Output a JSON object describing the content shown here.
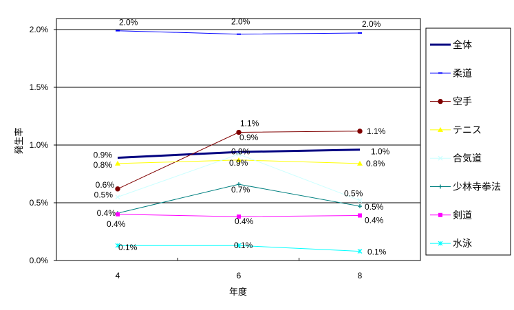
{
  "chart_data": {
    "type": "line",
    "title": "",
    "xlabel": "年度",
    "ylabel": "発生率",
    "x": [
      "4",
      "6",
      "8"
    ],
    "ylim": [
      0,
      2.0
    ],
    "yticks": [
      "0.0%",
      "0.5%",
      "1.0%",
      "1.5%",
      "2.0%"
    ],
    "grid": true,
    "legend": "right",
    "series": [
      {
        "name": "全体",
        "color": "#000080",
        "marker": "none",
        "values": [
          0.89,
          0.94,
          0.96
        ],
        "labels": [
          "0.9%",
          "0.9%",
          "1.0%"
        ]
      },
      {
        "name": "柔道",
        "color": "#0000ff",
        "marker": "dash",
        "values": [
          1.99,
          1.96,
          1.97
        ],
        "labels": [
          "2.0%",
          "2.0%",
          "2.0%"
        ]
      },
      {
        "name": "空手",
        "color": "#800000",
        "marker": "circle",
        "values": [
          0.62,
          1.11,
          1.12
        ],
        "labels": [
          "0.6%",
          "1.1%",
          "1.1%"
        ]
      },
      {
        "name": "テニス",
        "color": "#ffff00",
        "marker": "triangle",
        "values": [
          0.84,
          0.87,
          0.84
        ],
        "labels": [
          "0.8%",
          "0.9%",
          "0.8%"
        ]
      },
      {
        "name": "合気道",
        "color": "#ccffff",
        "marker": "x",
        "values": [
          0.55,
          0.92,
          0.52
        ],
        "labels": [
          "0.5%",
          "0.9%",
          "0.5%"
        ]
      },
      {
        "name": "少林寺拳法",
        "color": "#008080",
        "marker": "plus",
        "values": [
          0.41,
          0.66,
          0.47
        ],
        "labels": [
          "0.4%",
          "0.7%",
          "0.5%"
        ]
      },
      {
        "name": "剣道",
        "color": "#ff00ff",
        "marker": "square",
        "values": [
          0.4,
          0.38,
          0.39
        ],
        "labels": [
          "0.4%",
          "0.4%",
          "0.4%"
        ]
      },
      {
        "name": "水泳",
        "color": "#00ffff",
        "marker": "asterisk",
        "values": [
          0.13,
          0.13,
          0.08
        ],
        "labels": [
          "0.1%",
          "0.1%",
          "0.1%"
        ]
      }
    ]
  }
}
